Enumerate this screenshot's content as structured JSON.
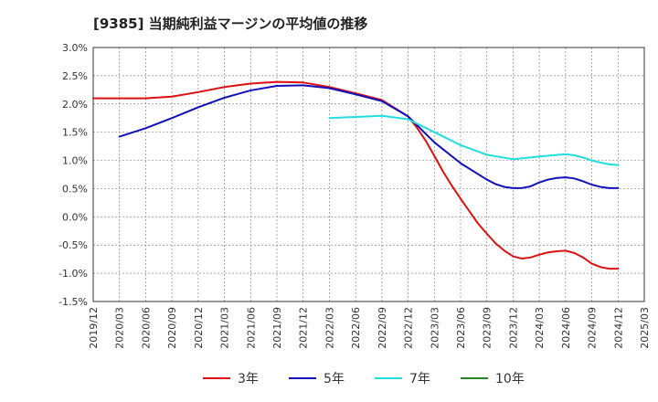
{
  "chart_data": {
    "type": "line",
    "title": "[9385]  当期純利益マージンの平均値の推移",
    "xlabel": "",
    "ylabel": "",
    "x_ticks": [
      "2019/12",
      "2020/03",
      "2020/06",
      "2020/09",
      "2020/12",
      "2021/03",
      "2021/06",
      "2021/09",
      "2021/12",
      "2022/03",
      "2022/06",
      "2022/09",
      "2022/12",
      "2023/03",
      "2023/06",
      "2023/09",
      "2023/12",
      "2024/03",
      "2024/06",
      "2024/09",
      "2024/12",
      "2025/03"
    ],
    "y_ticks": [
      "3.0%",
      "2.5%",
      "2.0%",
      "1.5%",
      "1.0%",
      "0.5%",
      "0.0%",
      "-0.5%",
      "-1.0%",
      "-1.5%"
    ],
    "ylim": [
      -1.5,
      3.0
    ],
    "grid": true,
    "legend_position": "bottom",
    "series": [
      {
        "name": "3年",
        "color": "#dd1111",
        "x": [
          "2019/12",
          "2020/03",
          "2020/06",
          "2020/09",
          "2020/12",
          "2021/03",
          "2021/06",
          "2021/09",
          "2021/12",
          "2022/03",
          "2022/06",
          "2022/09",
          "2022/12",
          "2023/01",
          "2023/02",
          "2023/03",
          "2023/04",
          "2023/05",
          "2023/06",
          "2023/07",
          "2023/08",
          "2023/09",
          "2023/10",
          "2023/11",
          "2023/12",
          "2024/01",
          "2024/02",
          "2024/03",
          "2024/04",
          "2024/05",
          "2024/06",
          "2024/07",
          "2024/08",
          "2024/09",
          "2024/10",
          "2024/11",
          "2024/12"
        ],
        "values": [
          2.1,
          2.1,
          2.1,
          2.13,
          2.21,
          2.3,
          2.36,
          2.39,
          2.38,
          2.3,
          2.19,
          2.07,
          1.78,
          1.58,
          1.35,
          1.08,
          0.8,
          0.55,
          0.32,
          0.1,
          -0.12,
          -0.3,
          -0.47,
          -0.6,
          -0.7,
          -0.74,
          -0.72,
          -0.67,
          -0.63,
          -0.61,
          -0.6,
          -0.64,
          -0.72,
          -0.83,
          -0.89,
          -0.92,
          -0.92
        ]
      },
      {
        "name": "5年",
        "color": "#1111bb",
        "x": [
          "2020/03",
          "2020/06",
          "2020/09",
          "2020/12",
          "2021/03",
          "2021/06",
          "2021/09",
          "2021/12",
          "2022/03",
          "2022/06",
          "2022/09",
          "2022/12",
          "2023/03",
          "2023/06",
          "2023/09",
          "2023/10",
          "2023/11",
          "2023/12",
          "2024/01",
          "2024/02",
          "2024/03",
          "2024/04",
          "2024/05",
          "2024/06",
          "2024/07",
          "2024/08",
          "2024/09",
          "2024/10",
          "2024/11",
          "2024/12"
        ],
        "values": [
          1.42,
          1.57,
          1.75,
          1.94,
          2.11,
          2.24,
          2.32,
          2.33,
          2.28,
          2.17,
          2.05,
          1.78,
          1.32,
          0.95,
          0.66,
          0.58,
          0.53,
          0.51,
          0.51,
          0.54,
          0.61,
          0.66,
          0.69,
          0.7,
          0.68,
          0.63,
          0.57,
          0.53,
          0.51,
          0.51
        ]
      },
      {
        "name": "7年",
        "color": "#22dddd",
        "x": [
          "2022/03",
          "2022/06",
          "2022/09",
          "2022/12",
          "2023/03",
          "2023/06",
          "2023/09",
          "2023/12",
          "2024/03",
          "2024/06",
          "2024/07",
          "2024/08",
          "2024/09",
          "2024/10",
          "2024/11",
          "2024/12"
        ],
        "values": [
          1.75,
          1.77,
          1.79,
          1.73,
          1.5,
          1.27,
          1.1,
          1.02,
          1.07,
          1.11,
          1.09,
          1.05,
          1.0,
          0.96,
          0.93,
          0.92
        ]
      },
      {
        "name": "10年",
        "color": "#228822",
        "x": [],
        "values": []
      }
    ]
  }
}
